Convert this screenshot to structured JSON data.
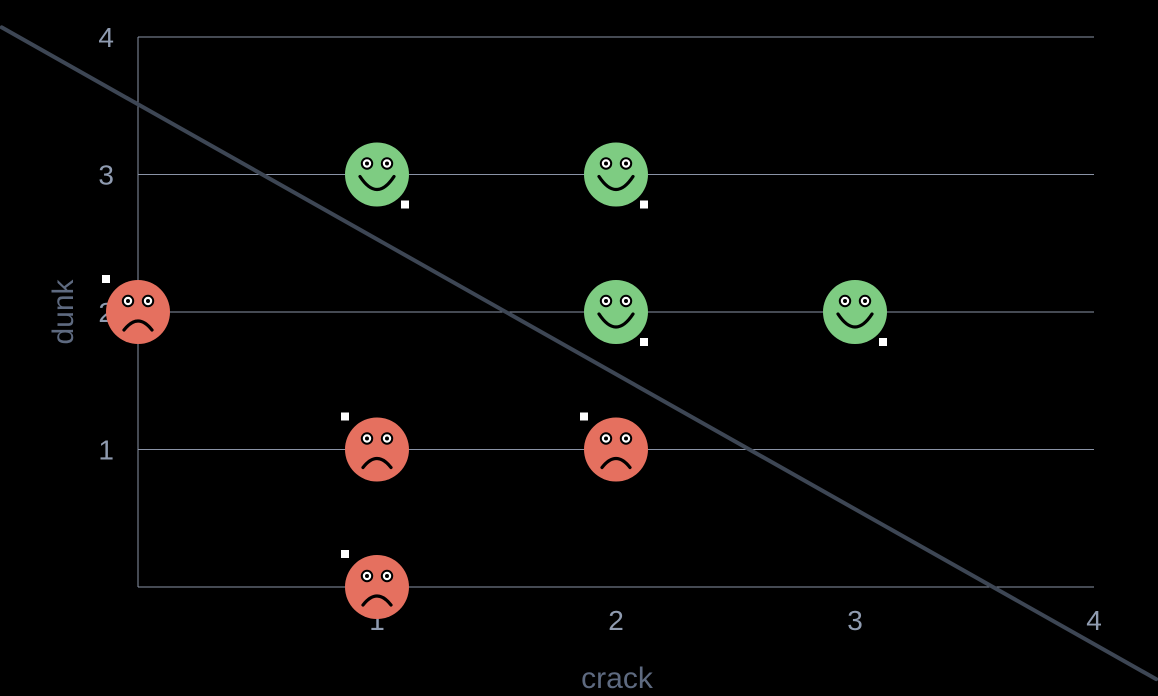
{
  "chart_data": {
    "type": "scatter",
    "xlabel": "crack",
    "ylabel": "dunk",
    "xlim": [
      0,
      4
    ],
    "ylim": [
      0,
      4
    ],
    "x_ticks": [
      {
        "value": 1,
        "label": "1"
      },
      {
        "value": 2,
        "label": "2"
      },
      {
        "value": 3,
        "label": "3"
      },
      {
        "value": 4,
        "label": "4"
      }
    ],
    "y_ticks": [
      {
        "value": 1,
        "label": "1"
      },
      {
        "value": 2,
        "label": "2"
      },
      {
        "value": 3,
        "label": "3"
      },
      {
        "value": 4,
        "label": "4"
      }
    ],
    "grid": "horizontal",
    "series": [
      {
        "class": "happy",
        "color": "#7ecc82",
        "icon": "smiley-face-icon",
        "points": [
          [
            1,
            3
          ],
          [
            2,
            3
          ],
          [
            2,
            2
          ],
          [
            3,
            2
          ]
        ]
      },
      {
        "class": "sad",
        "color": "#e5705f",
        "icon": "frowny-face-icon",
        "points": [
          [
            0,
            2
          ],
          [
            1,
            1
          ],
          [
            2,
            1
          ],
          [
            1,
            0
          ]
        ]
      }
    ],
    "decision_boundary": {
      "type": "line",
      "color": "#3d4654",
      "points": [
        [
          -0.57,
          4.07
        ],
        [
          4.26,
          -0.67
        ]
      ]
    }
  }
}
